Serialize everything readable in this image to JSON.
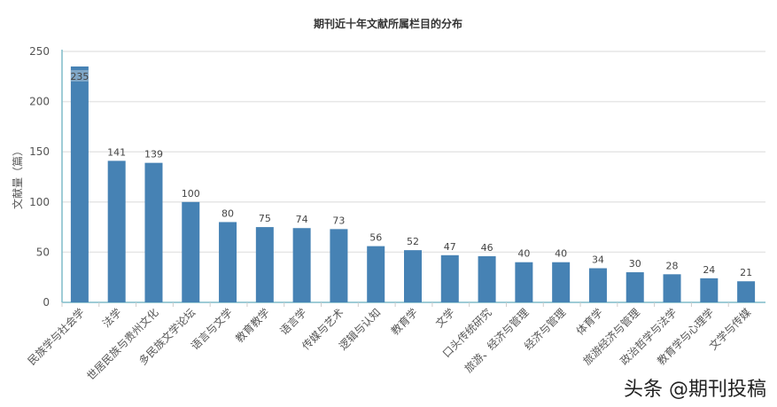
{
  "chart_data": {
    "type": "bar",
    "title": "期刊近十年文献所属栏目的分布",
    "xlabel": "",
    "ylabel": "文献量（篇）",
    "ylim": [
      0,
      250
    ],
    "yticks": [
      0,
      50,
      100,
      150,
      200,
      250
    ],
    "grid": true,
    "bar_color": "#4682b4",
    "categories": [
      "民族学与社会学",
      "法学",
      "世居民族与贵州文化",
      "多民族文学论坛",
      "语言与文学",
      "教育教学",
      "语言学",
      "传媒与艺术",
      "逻辑与认知",
      "教育学",
      "文学",
      "口头传统研究",
      "旅游、经济与管理",
      "经济与管理",
      "体育学",
      "旅游经济与管理",
      "政治哲学与法学",
      "教育学与心理学",
      "文学与传媒"
    ],
    "values": [
      235,
      141,
      139,
      100,
      80,
      75,
      74,
      73,
      56,
      52,
      47,
      46,
      40,
      40,
      34,
      30,
      28,
      24,
      21
    ]
  },
  "watermark": "头条 @期刊投稿"
}
